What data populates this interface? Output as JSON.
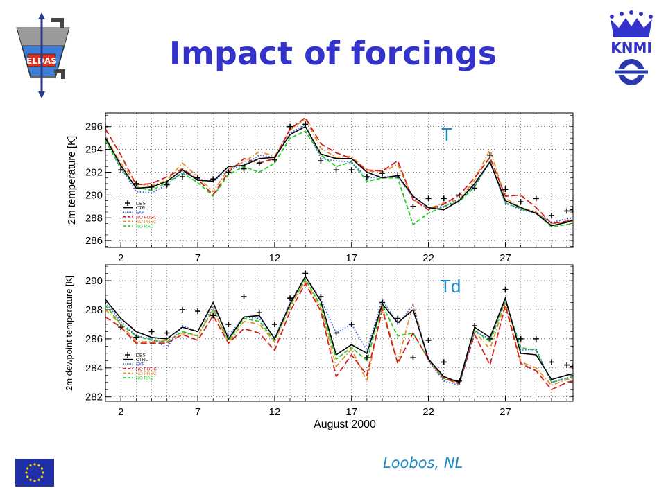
{
  "title": "Impact of forcings",
  "footer": "Loobos, NL",
  "logos": {
    "eldas_text": "ELDAS",
    "knmi_text": "KNMI"
  },
  "colors": {
    "title": "#3333cc",
    "footer": "#1c8cc8",
    "label_T": "#1c8cc8"
  },
  "icons": [
    "eldas-logo-icon",
    "knmi-crown-icon",
    "ecmwf-logo-icon",
    "eu-flag-icon"
  ],
  "chart_data": [
    {
      "type": "line",
      "panel_label": "T",
      "ylabel": "2m temperature [K]",
      "xlabel": "",
      "xlim": [
        1,
        31.4
      ],
      "ylim": [
        285.4,
        297.2
      ],
      "yticks": [
        286,
        288,
        290,
        292,
        294,
        296
      ],
      "xticks": [
        2,
        7,
        12,
        17,
        22,
        27
      ],
      "grid": true,
      "legend_position": "bottom-left",
      "x": [
        1,
        2,
        3,
        4,
        5,
        6,
        7,
        8,
        9,
        10,
        11,
        12,
        13,
        14,
        15,
        16,
        17,
        18,
        19,
        20,
        21,
        22,
        23,
        24,
        25,
        26,
        27,
        28,
        29,
        30,
        31,
        31.4
      ],
      "series": [
        {
          "name": "OBS",
          "style": "cross",
          "color": "#000000",
          "values": [
            296.0,
            292.2,
            291.0,
            290.7,
            290.9,
            291.6,
            291.5,
            291.4,
            292.0,
            292.3,
            292.8,
            293.1,
            296.0,
            296.2,
            293.0,
            292.2,
            292.2,
            291.6,
            291.9,
            291.7,
            289.0,
            289.7,
            289.7,
            290.0,
            290.6,
            293.5,
            290.5,
            289.4,
            289.7,
            288.2,
            288.6,
            288.7
          ]
        },
        {
          "name": "CTRL",
          "style": "solid",
          "color": "#000000",
          "values": [
            295.0,
            292.6,
            290.6,
            290.7,
            291.2,
            292.2,
            291.3,
            291.2,
            292.5,
            292.6,
            293.2,
            293.3,
            295.3,
            296.0,
            293.6,
            293.2,
            293.2,
            292.0,
            291.5,
            291.7,
            289.9,
            288.9,
            288.7,
            289.5,
            291.0,
            292.9,
            289.5,
            288.9,
            288.4,
            287.3,
            287.6,
            287.8
          ]
        },
        {
          "name": "EKF",
          "style": "dotted",
          "color": "#3a5de0",
          "values": [
            295.1,
            292.4,
            290.3,
            290.2,
            290.9,
            292.0,
            291.4,
            291.2,
            292.2,
            292.6,
            293.5,
            293.3,
            295.4,
            296.2,
            293.2,
            293.0,
            292.9,
            291.5,
            291.6,
            291.6,
            289.8,
            288.8,
            289.0,
            289.6,
            290.8,
            292.9,
            289.3,
            288.7,
            288.4,
            287.6,
            287.9,
            288.0
          ]
        },
        {
          "name": "NO FORC",
          "style": "longdash",
          "color": "#d02020",
          "values": [
            295.8,
            293.5,
            290.9,
            291.0,
            291.6,
            292.3,
            291.4,
            290.0,
            292.0,
            293.2,
            292.8,
            293.2,
            295.8,
            296.8,
            294.5,
            293.7,
            293.2,
            292.2,
            292.1,
            293.0,
            289.6,
            288.7,
            289.2,
            290.0,
            291.5,
            293.3,
            289.9,
            290.0,
            288.9,
            287.5,
            287.7,
            287.8
          ]
        },
        {
          "name": "NO PREC",
          "style": "dashdot",
          "color": "#e0902a",
          "values": [
            295.1,
            292.8,
            291.0,
            290.8,
            291.3,
            292.8,
            291.6,
            290.3,
            292.3,
            292.9,
            293.8,
            293.4,
            295.7,
            296.7,
            294.1,
            293.3,
            293.4,
            292.1,
            292.0,
            292.7,
            289.6,
            288.8,
            289.3,
            289.6,
            291.3,
            294.0,
            289.7,
            288.9,
            288.5,
            287.5,
            287.6,
            287.7
          ]
        },
        {
          "name": "NO RAD",
          "style": "dashed",
          "color": "#22cc22",
          "values": [
            294.8,
            292.3,
            290.7,
            290.4,
            291.1,
            291.9,
            291.1,
            289.9,
            291.8,
            292.5,
            292.0,
            292.8,
            295.0,
            295.6,
            293.5,
            292.5,
            292.9,
            291.2,
            291.5,
            291.5,
            287.4,
            288.4,
            289.0,
            289.4,
            290.7,
            293.0,
            289.3,
            288.8,
            288.4,
            287.2,
            287.4,
            287.5
          ]
        }
      ]
    },
    {
      "type": "line",
      "panel_label": "Td",
      "ylabel": "2m dewpoint temperature [K]",
      "xlabel": "August 2000",
      "xlim": [
        1,
        31.4
      ],
      "ylim": [
        281.7,
        291.1
      ],
      "yticks": [
        282,
        284,
        286,
        288,
        290
      ],
      "xticks": [
        2,
        7,
        12,
        17,
        22,
        27
      ],
      "grid": true,
      "legend_position": "bottom-left",
      "x": [
        1,
        2,
        3,
        4,
        5,
        6,
        7,
        8,
        9,
        10,
        11,
        12,
        13,
        14,
        15,
        16,
        17,
        18,
        19,
        20,
        21,
        22,
        23,
        24,
        25,
        26,
        27,
        28,
        29,
        30,
        31,
        31.4
      ],
      "series": [
        {
          "name": "OBS",
          "style": "cross",
          "color": "#000000",
          "values": [
            288.6,
            286.8,
            286.1,
            286.5,
            286.4,
            288.0,
            287.9,
            287.6,
            287.0,
            288.9,
            287.8,
            287.0,
            288.8,
            290.5,
            288.9,
            286.4,
            287.0,
            284.7,
            288.5,
            287.4,
            284.7,
            285.9,
            284.4,
            283.1,
            286.9,
            286.0,
            289.4,
            286.0,
            286.0,
            284.4,
            284.2,
            284.1
          ]
        },
        {
          "name": "CTRL",
          "style": "solid",
          "color": "#000000",
          "values": [
            288.7,
            287.4,
            286.5,
            286.1,
            286.0,
            286.8,
            286.5,
            288.5,
            286.0,
            287.5,
            287.6,
            286.0,
            288.4,
            290.3,
            288.6,
            284.9,
            285.6,
            285.0,
            288.4,
            287.1,
            288.0,
            284.6,
            283.4,
            283.0,
            286.8,
            286.1,
            288.8,
            285.0,
            284.9,
            283.2,
            283.5,
            283.6
          ]
        },
        {
          "name": "EKF",
          "style": "dotted",
          "color": "#3a5de0",
          "values": [
            288.5,
            287.2,
            286.2,
            286.0,
            285.4,
            286.9,
            286.5,
            288.2,
            286.2,
            287.5,
            287.4,
            286.1,
            288.5,
            290.3,
            288.7,
            286.4,
            287.0,
            285.2,
            288.7,
            287.0,
            288.3,
            284.5,
            283.1,
            282.8,
            286.5,
            286.0,
            288.7,
            285.2,
            285.3,
            283.0,
            283.3,
            283.4
          ]
        },
        {
          "name": "NO FORC",
          "style": "longdash",
          "color": "#d02020",
          "values": [
            287.5,
            286.8,
            285.7,
            285.7,
            285.7,
            286.3,
            285.9,
            287.6,
            285.7,
            286.7,
            286.4,
            285.2,
            287.9,
            289.8,
            287.9,
            283.4,
            284.9,
            283.5,
            288.0,
            284.3,
            286.4,
            284.6,
            283.3,
            282.9,
            286.3,
            284.2,
            288.3,
            284.3,
            283.8,
            282.5,
            283.0,
            283.1
          ]
        },
        {
          "name": "NO PREC",
          "style": "dashdot",
          "color": "#e0902a",
          "values": [
            288.0,
            287.0,
            285.8,
            285.8,
            285.9,
            286.4,
            286.2,
            288.1,
            285.7,
            287.2,
            287.0,
            285.8,
            288.3,
            290.0,
            288.1,
            284.1,
            285.3,
            283.1,
            288.2,
            284.4,
            288.4,
            284.5,
            283.3,
            282.9,
            286.5,
            285.3,
            288.5,
            284.4,
            284.0,
            282.8,
            283.2,
            283.3
          ]
        },
        {
          "name": "NO RAD",
          "style": "dashed",
          "color": "#22cc22",
          "values": [
            288.3,
            287.0,
            286.2,
            285.9,
            285.8,
            286.5,
            286.2,
            288.0,
            285.9,
            287.4,
            287.2,
            285.9,
            288.2,
            290.1,
            288.3,
            284.6,
            285.4,
            284.5,
            288.3,
            286.2,
            286.4,
            284.6,
            283.2,
            283.1,
            286.6,
            285.8,
            288.6,
            285.4,
            285.2,
            283.0,
            283.3,
            283.4
          ]
        }
      ]
    }
  ]
}
